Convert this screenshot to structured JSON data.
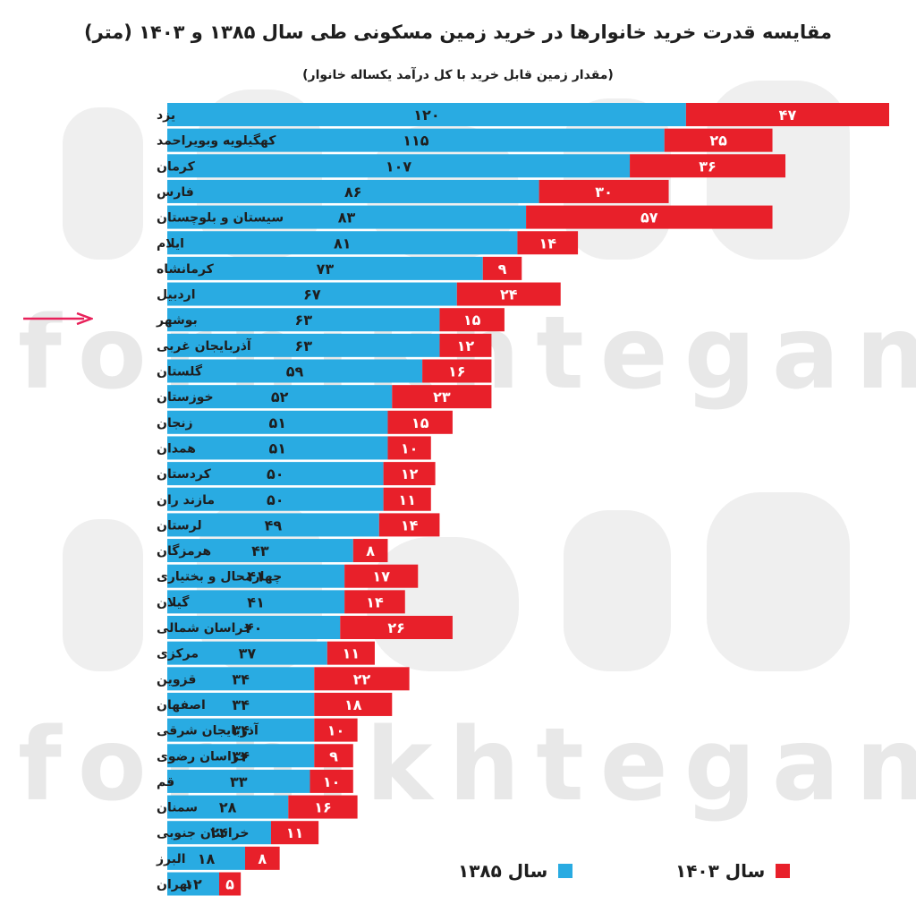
{
  "title": "مقایسه قدرت خرید خانوارها در خرید زمین مسکونی طی سال ۱۳۸۵ و ۱۴۰۳ (متر)",
  "subtitle": "(مقدار زمین قابل خرید با کل درآمد یکساله خانوار)",
  "watermark": {
    "latin": "forhikhtegan",
    "logo": "فرهیختگان"
  },
  "colors": {
    "series_1385": "#29abe2",
    "series_1403": "#e8202a",
    "arrow": "#e8215a"
  },
  "chart_data": {
    "type": "bar",
    "orientation": "horizontal",
    "stacked": true,
    "numeral_system": "persian",
    "categories": [
      "یزد",
      "کهگیلویه وبویراحمد",
      "کرمان",
      "فارس",
      "سیستان و بلوچستان",
      "ایلام",
      "کرمانشاه",
      "اردبیل",
      "بوشهر",
      "آذربایجان غربی",
      "گلستان",
      "خوزستان",
      "زنجان",
      "همدان",
      "کردستان",
      "مازند ران",
      "لرستان",
      "هرمزگان",
      "چهارمحال و بختیاری",
      "گیلان",
      "خراسان شمالی",
      "مرکزی",
      "قزوین",
      "اصفهان",
      "آذربایجان شرقی",
      "خراسان رضوی",
      "قم",
      "سمنان",
      "خراسان جنوبی",
      "البرز",
      "تهران"
    ],
    "series": [
      {
        "name": "سال ۱۳۸۵",
        "color": "#29abe2",
        "values": [
          120,
          115,
          107,
          86,
          83,
          81,
          73,
          67,
          63,
          63,
          59,
          52,
          51,
          51,
          50,
          50,
          49,
          43,
          41,
          41,
          40,
          37,
          34,
          34,
          34,
          34,
          33,
          28,
          24,
          18,
          12
        ]
      },
      {
        "name": "سال ۱۴۰۳",
        "color": "#e8202a",
        "values": [
          47,
          25,
          36,
          30,
          57,
          14,
          9,
          24,
          15,
          12,
          16,
          23,
          15,
          10,
          12,
          11,
          14,
          8,
          17,
          14,
          26,
          11,
          22,
          18,
          10,
          9,
          10,
          16,
          11,
          8,
          5
        ]
      }
    ],
    "highlighted_category": "بوشهر",
    "legend": {
      "placement": "bottom"
    },
    "xlim": [
      0,
      167
    ],
    "grid": false
  },
  "legend": {
    "label_1403": "سال ۱۴۰۳",
    "label_1385": "سال ۱۳۸۵"
  }
}
